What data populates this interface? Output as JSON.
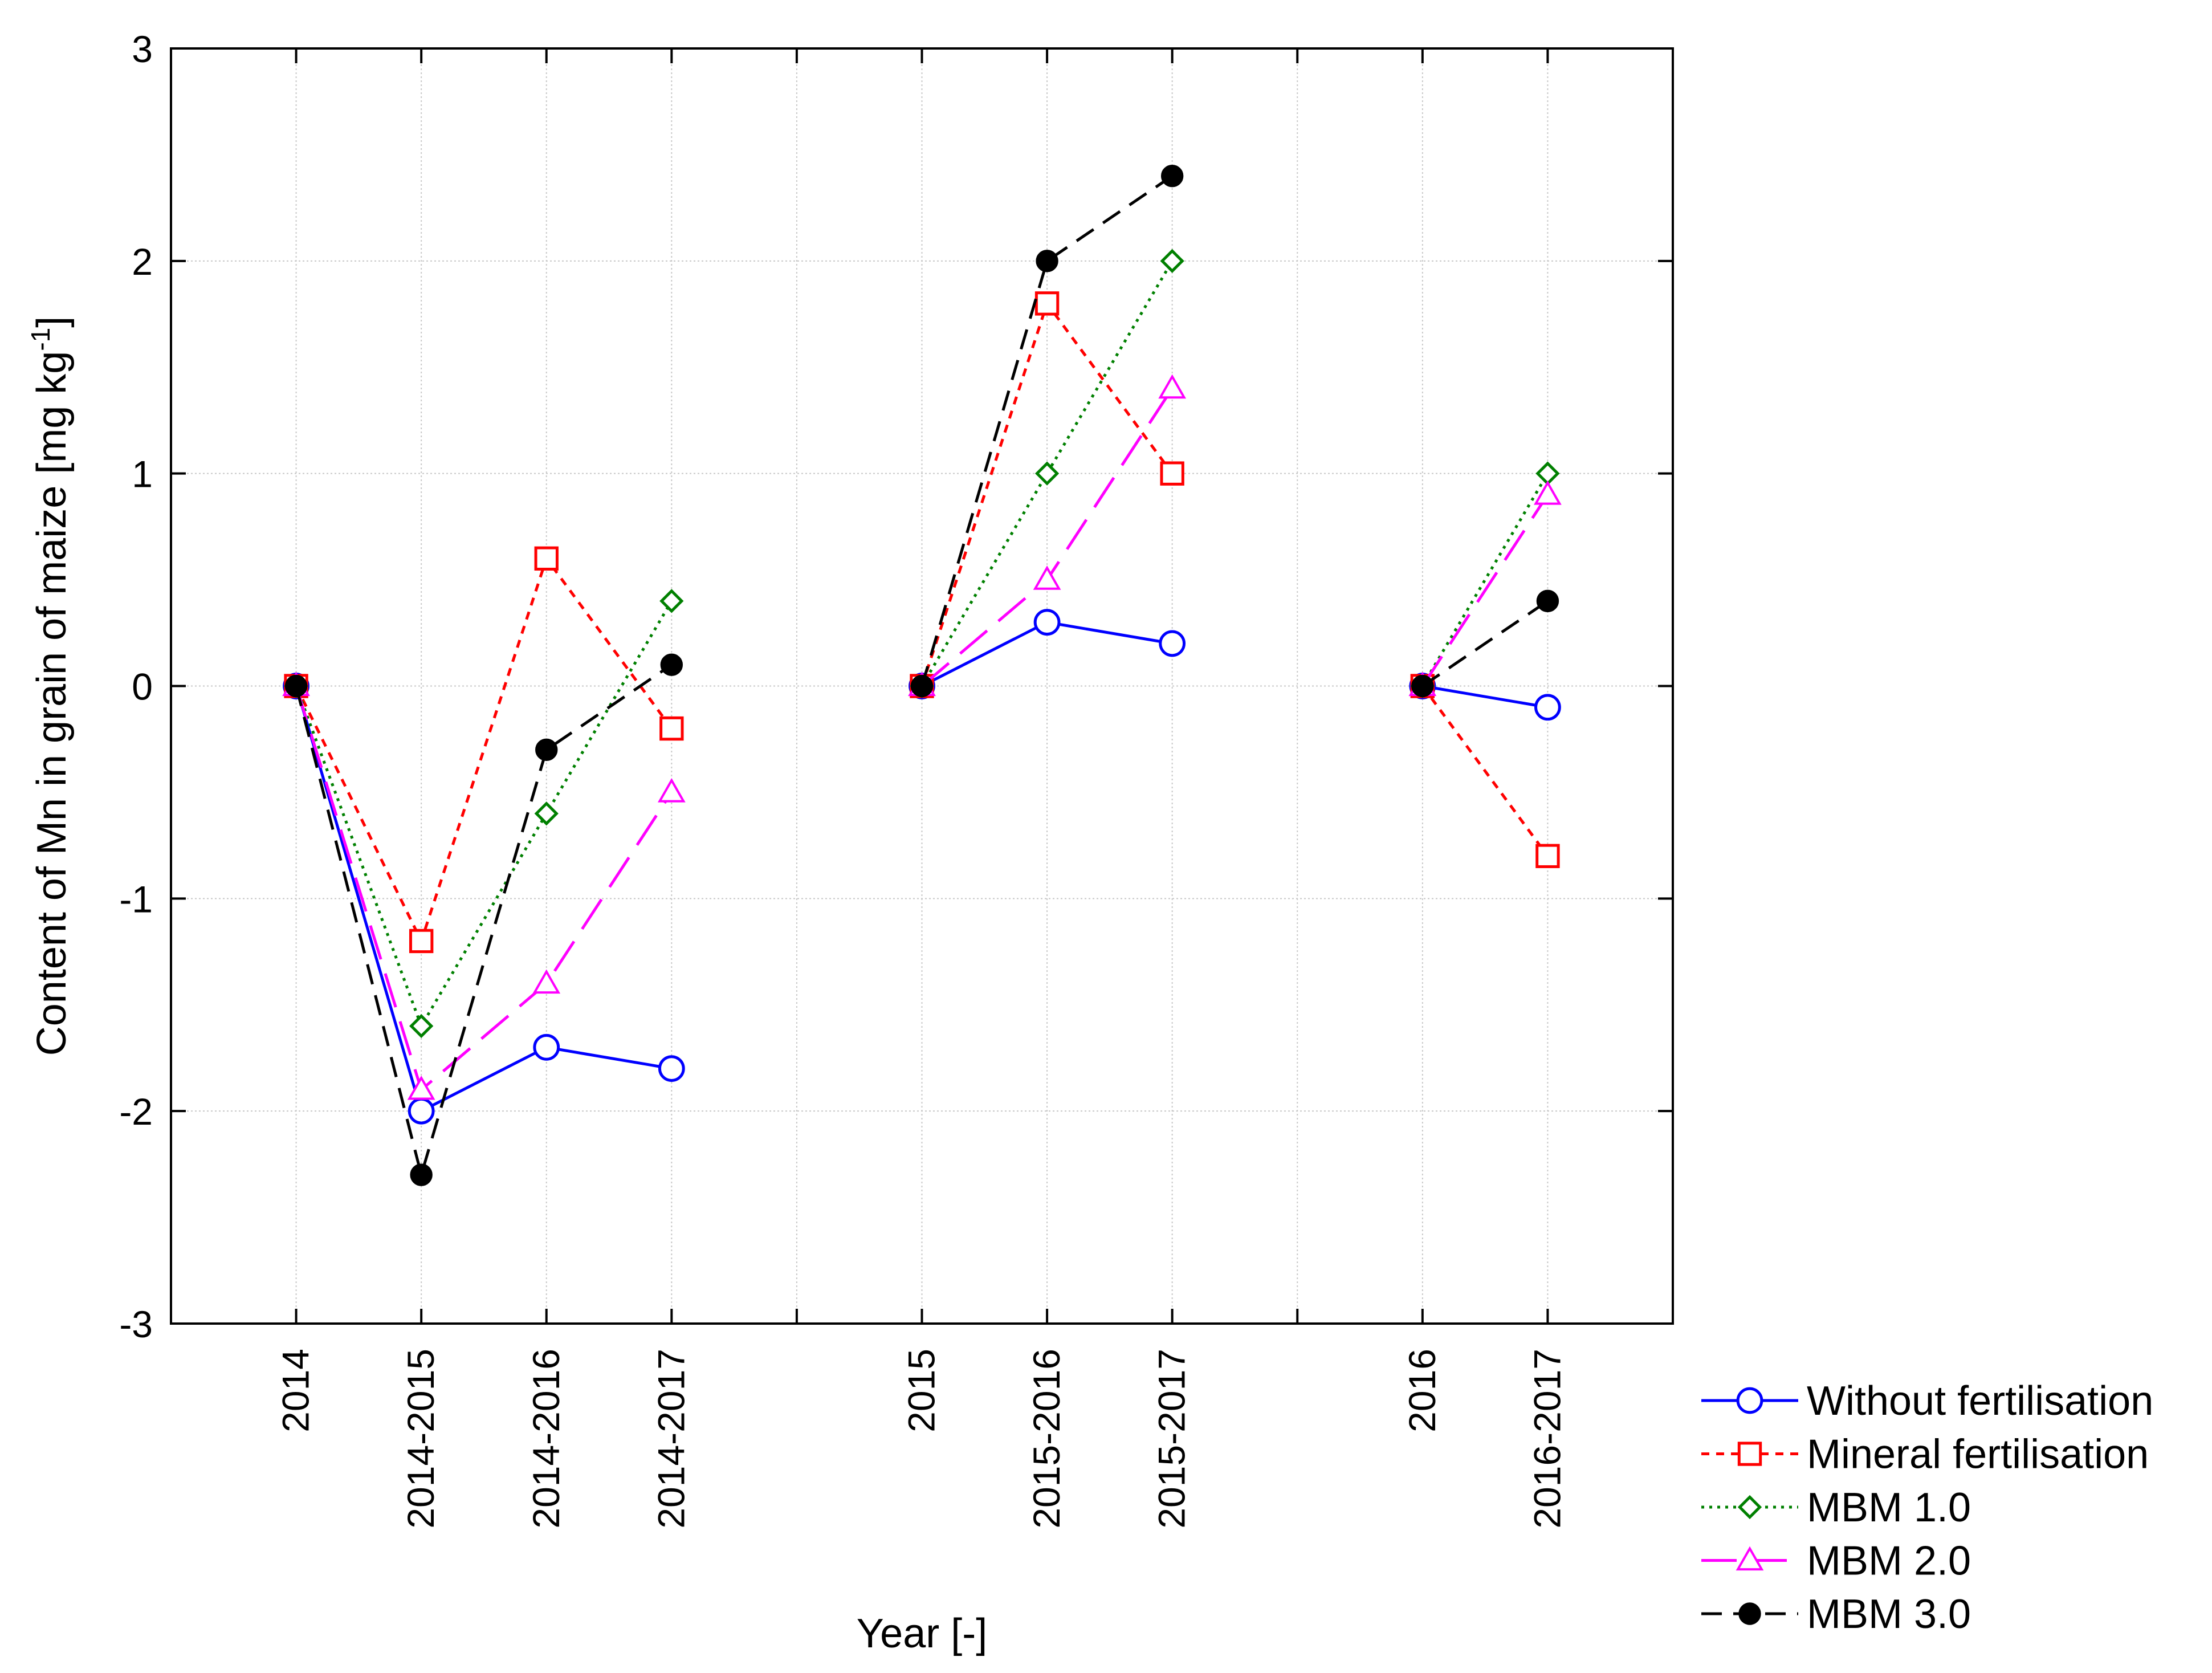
{
  "chart_data": {
    "type": "line",
    "title": "",
    "xlabel": "Year [-]",
    "ylabel_main": "Content of Mn in grain of maize [mg kg",
    "ylabel_sup": "-1",
    "ylabel_close": "]",
    "ylim": [
      -3,
      3
    ],
    "yticks": [
      -3,
      -2,
      -1,
      0,
      1,
      2,
      3
    ],
    "ytick_labels": [
      "-3",
      "-2",
      "-1",
      "0",
      "1",
      "2",
      "3"
    ],
    "grid": true,
    "legend_position": "bottom-right outside",
    "categories": [
      "2014",
      "2014-2015",
      "2014-2016",
      "2014-2017",
      "",
      "2015",
      "2015-2016",
      "2015-2017",
      "",
      "2016",
      "2016-2017"
    ],
    "category_groups": [
      [
        0,
        1,
        2,
        3
      ],
      [
        5,
        6,
        7
      ],
      [
        9,
        10
      ]
    ],
    "series": [
      {
        "name": "Without fertilisation",
        "color": "#0000ff",
        "dash": "solid",
        "marker": "circle",
        "values": [
          0,
          -2.0,
          -1.7,
          -1.8,
          null,
          0,
          0.3,
          0.2,
          null,
          0,
          -0.1
        ]
      },
      {
        "name": "Mineral fertilisation",
        "color": "#ff0000",
        "dash": "short-dash",
        "marker": "square",
        "values": [
          0,
          -1.2,
          0.6,
          -0.2,
          null,
          0,
          1.8,
          1.0,
          null,
          0,
          -0.8
        ]
      },
      {
        "name": "MBM 1.0",
        "color": "#008000",
        "dash": "dotted",
        "marker": "diamond",
        "values": [
          0,
          -1.6,
          -0.6,
          0.4,
          null,
          0,
          1.0,
          2.0,
          null,
          0,
          1.0
        ]
      },
      {
        "name": "MBM 2.0",
        "color": "#ff00ff",
        "dash": "long-dash",
        "marker": "triangle",
        "values": [
          0,
          -1.9,
          -1.4,
          -0.5,
          null,
          0,
          0.5,
          1.4,
          null,
          0,
          0.9
        ]
      },
      {
        "name": "MBM 3.0",
        "color": "#000000",
        "dash": "dash",
        "marker": "filled-circle",
        "values": [
          0,
          -2.3,
          -0.3,
          0.1,
          null,
          0,
          2.0,
          2.4,
          null,
          0,
          0.4
        ]
      }
    ]
  }
}
